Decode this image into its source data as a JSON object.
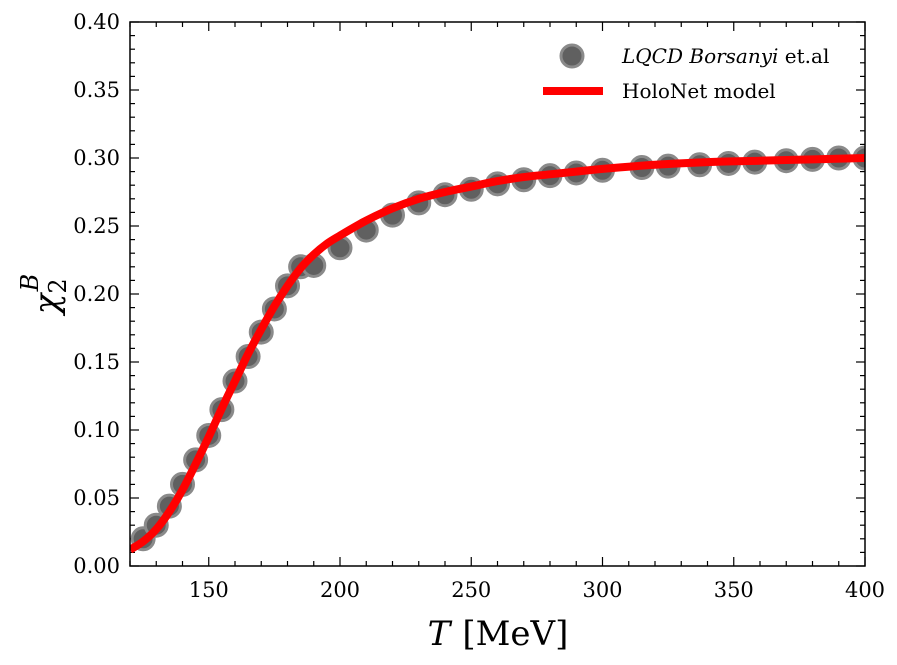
{
  "chart_data": {
    "type": "scatter",
    "title": "",
    "xlabel": {
      "symbol": "T",
      "unit": "[MeV]"
    },
    "ylabel": {
      "base": "χ",
      "sub": "2",
      "sup": "B"
    },
    "xlim": [
      120,
      400
    ],
    "ylim": [
      0.0,
      0.4
    ],
    "x_ticks": [
      150,
      200,
      250,
      300,
      350,
      400
    ],
    "x_tick_labels": [
      "150",
      "200",
      "250",
      "300",
      "350",
      "400"
    ],
    "y_ticks": [
      0.0,
      0.05,
      0.1,
      0.15,
      0.2,
      0.25,
      0.3,
      0.35,
      0.4
    ],
    "y_tick_labels": [
      "0.00",
      "0.05",
      "0.10",
      "0.15",
      "0.20",
      "0.25",
      "0.30",
      "0.35",
      "0.40"
    ],
    "legend": {
      "position": "top-right",
      "entries": [
        {
          "label_italic": "LQCD Borsanyi",
          "label_rest": " et.al",
          "kind": "marker"
        },
        {
          "label": "HoloNet model",
          "kind": "line"
        }
      ]
    },
    "series": [
      {
        "name": "LQCD Borsanyi et.al",
        "kind": "scatter",
        "color": "#606060",
        "edge_color": "#8a8a8a",
        "x": [
          125,
          130,
          135,
          140,
          145,
          150,
          155,
          160,
          165,
          170,
          175,
          180,
          185,
          190,
          200,
          210,
          220,
          230,
          240,
          250,
          260,
          270,
          280,
          290,
          300,
          315,
          325,
          337,
          348,
          358,
          370,
          380,
          390,
          400
        ],
        "y": [
          0.02,
          0.03,
          0.044,
          0.06,
          0.078,
          0.096,
          0.115,
          0.136,
          0.154,
          0.172,
          0.189,
          0.206,
          0.22,
          0.221,
          0.234,
          0.247,
          0.258,
          0.267,
          0.273,
          0.277,
          0.281,
          0.284,
          0.287,
          0.289,
          0.291,
          0.293,
          0.294,
          0.295,
          0.296,
          0.297,
          0.298,
          0.299,
          0.3,
          0.3
        ]
      },
      {
        "name": "HoloNet model",
        "kind": "line",
        "color": "#ff0000",
        "x": [
          120,
          125,
          130,
          135,
          140,
          145,
          150,
          155,
          160,
          165,
          170,
          175,
          180,
          185,
          190,
          195,
          200,
          210,
          220,
          230,
          240,
          250,
          260,
          270,
          280,
          290,
          300,
          320,
          340,
          360,
          380,
          400
        ],
        "y": [
          0.012,
          0.018,
          0.027,
          0.04,
          0.056,
          0.075,
          0.095,
          0.116,
          0.136,
          0.156,
          0.174,
          0.191,
          0.206,
          0.219,
          0.229,
          0.237,
          0.243,
          0.254,
          0.263,
          0.27,
          0.275,
          0.279,
          0.283,
          0.286,
          0.288,
          0.29,
          0.292,
          0.295,
          0.297,
          0.298,
          0.299,
          0.3
        ]
      }
    ]
  }
}
